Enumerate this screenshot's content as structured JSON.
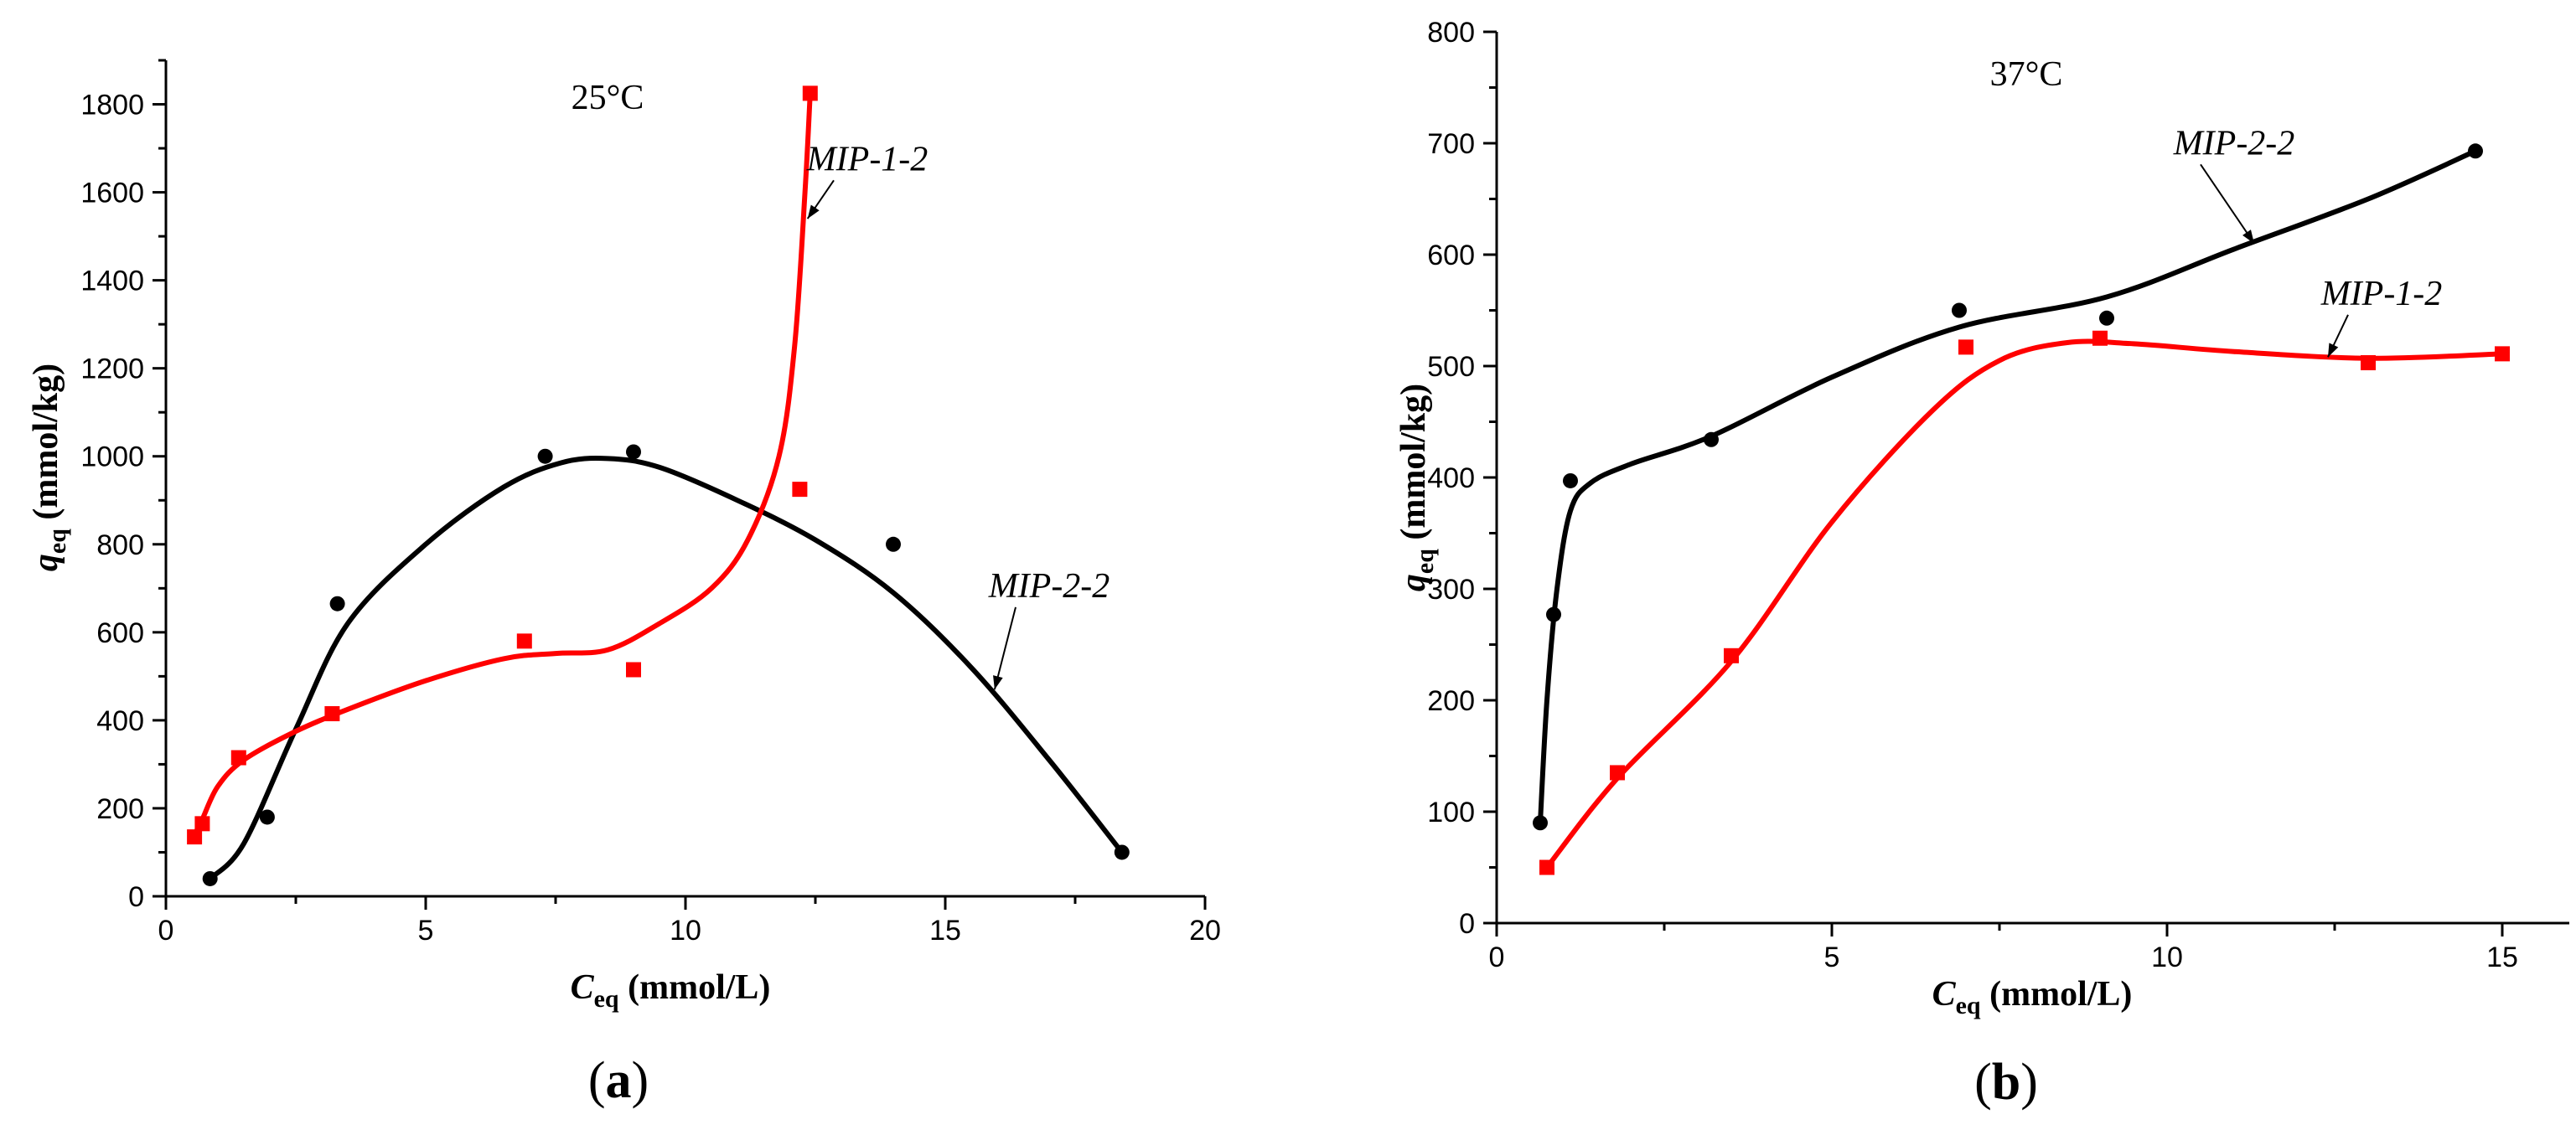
{
  "chart_data": [
    {
      "type": "scatter",
      "panel_label": "a",
      "annotation": "25°C",
      "xlabel_main": "C",
      "xlabel_sub": "eq",
      "xlabel_unit": " (mmol/L)",
      "ylabel_main": "q",
      "ylabel_sub": "eq",
      "ylabel_unit": " (mmol/kg)",
      "xlim": [
        0,
        20
      ],
      "ylim": [
        0,
        1900
      ],
      "xticks": [
        0,
        5,
        10,
        15,
        20
      ],
      "yticks": [
        0,
        200,
        400,
        600,
        800,
        1000,
        1200,
        1400,
        1600,
        1800
      ],
      "series": [
        {
          "name": "MIP-2-2",
          "color": "#000000",
          "marker": "circle",
          "points": [
            [
              0.85,
              40
            ],
            [
              1.95,
              180
            ],
            [
              3.3,
              665
            ],
            [
              7.3,
              1000
            ],
            [
              9.0,
              1010
            ],
            [
              14.0,
              800
            ],
            [
              18.4,
              100
            ]
          ],
          "fit": [
            [
              0.85,
              40
            ],
            [
              1.5,
              120
            ],
            [
              2.5,
              380
            ],
            [
              3.5,
              620
            ],
            [
              5.0,
              800
            ],
            [
              6.5,
              930
            ],
            [
              7.6,
              985
            ],
            [
              8.5,
              995
            ],
            [
              9.5,
              975
            ],
            [
              11.0,
              900
            ],
            [
              12.5,
              810
            ],
            [
              14.0,
              690
            ],
            [
              15.5,
              520
            ],
            [
              17.0,
              310
            ],
            [
              18.4,
              100
            ]
          ]
        },
        {
          "name": "MIP-1-2",
          "color": "#ff0000",
          "marker": "square",
          "points": [
            [
              0.55,
              135
            ],
            [
              0.7,
              165
            ],
            [
              1.4,
              315
            ],
            [
              3.2,
              415
            ],
            [
              6.9,
              580
            ],
            [
              9.0,
              515
            ],
            [
              12.2,
              925
            ],
            [
              12.4,
              1825
            ]
          ],
          "fit": [
            [
              0.55,
              140
            ],
            [
              0.7,
              175
            ],
            [
              1.0,
              250
            ],
            [
              1.5,
              310
            ],
            [
              2.5,
              375
            ],
            [
              3.5,
              425
            ],
            [
              5.0,
              490
            ],
            [
              6.5,
              540
            ],
            [
              7.5,
              552
            ],
            [
              8.5,
              560
            ],
            [
              9.5,
              620
            ],
            [
              10.5,
              700
            ],
            [
              11.2,
              810
            ],
            [
              11.8,
              1000
            ],
            [
              12.1,
              1250
            ],
            [
              12.3,
              1600
            ],
            [
              12.4,
              1825
            ]
          ]
        }
      ],
      "labels": [
        {
          "text": "MIP-1-2",
          "series": "MIP-1-2",
          "at": [
            13.5,
            1650
          ],
          "target": [
            12.35,
            1540
          ]
        },
        {
          "text": "MIP-2-2",
          "series": "MIP-2-2",
          "at": [
            17.0,
            680
          ],
          "target": [
            15.95,
            470
          ]
        }
      ]
    },
    {
      "type": "scatter",
      "panel_label": "b",
      "annotation": "37°C",
      "xlabel_main": "C",
      "xlabel_sub": "eq",
      "xlabel_unit": " (mmol/L)",
      "ylabel_main": "q",
      "ylabel_sub": "eq",
      "ylabel_unit": " (mmol/kg)",
      "xlim": [
        0,
        16
      ],
      "ylim": [
        0,
        800
      ],
      "xticks": [
        0,
        5,
        10,
        15
      ],
      "yticks": [
        0,
        100,
        200,
        300,
        400,
        500,
        600,
        700,
        800
      ],
      "series": [
        {
          "name": "MIP-2-2",
          "color": "#000000",
          "marker": "circle",
          "points": [
            [
              0.65,
              90
            ],
            [
              0.85,
              277
            ],
            [
              1.1,
              397
            ],
            [
              3.2,
              434
            ],
            [
              6.9,
              550
            ],
            [
              9.1,
              543
            ],
            [
              14.6,
              693
            ]
          ],
          "fit": [
            [
              0.65,
              90
            ],
            [
              0.75,
              200
            ],
            [
              0.9,
              300
            ],
            [
              1.1,
              370
            ],
            [
              1.4,
              395
            ],
            [
              2.0,
              412
            ],
            [
              3.2,
              437
            ],
            [
              5.0,
              490
            ],
            [
              6.9,
              535
            ],
            [
              9.1,
              562
            ],
            [
              11.0,
              605
            ],
            [
              13.0,
              650
            ],
            [
              14.6,
              693
            ]
          ]
        },
        {
          "name": "MIP-1-2",
          "color": "#ff0000",
          "marker": "square",
          "points": [
            [
              0.75,
              50
            ],
            [
              1.8,
              135
            ],
            [
              3.5,
              240
            ],
            [
              7.0,
              517
            ],
            [
              9.0,
              525
            ],
            [
              13.0,
              503
            ],
            [
              15.0,
              511
            ]
          ],
          "fit": [
            [
              0.75,
              50
            ],
            [
              1.8,
              130
            ],
            [
              3.5,
              235
            ],
            [
              5.0,
              360
            ],
            [
              6.5,
              460
            ],
            [
              7.5,
              505
            ],
            [
              8.5,
              521
            ],
            [
              9.5,
              520
            ],
            [
              11.0,
              513
            ],
            [
              13.0,
              507
            ],
            [
              15.0,
              511
            ]
          ]
        }
      ],
      "labels": [
        {
          "text": "MIP-2-2",
          "series": "MIP-2-2",
          "at": [
            11.0,
            690
          ],
          "target": [
            11.3,
            610
          ]
        },
        {
          "text": "MIP-1-2",
          "series": "MIP-1-2",
          "at": [
            13.2,
            555
          ],
          "target": [
            12.4,
            508
          ]
        }
      ]
    }
  ]
}
